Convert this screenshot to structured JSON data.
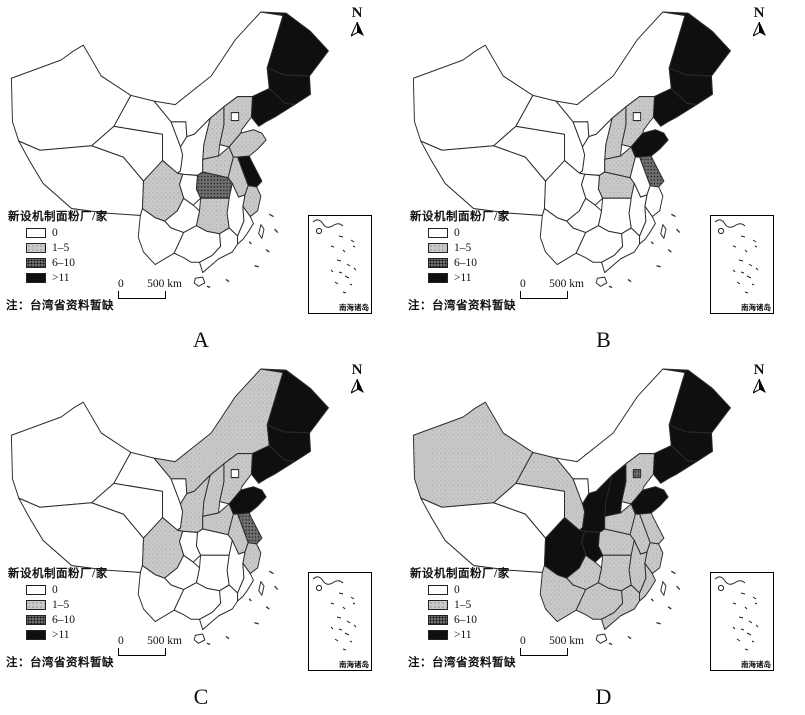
{
  "legend": {
    "title": "新设机制面粉厂/家",
    "classes": [
      {
        "label": "0"
      },
      {
        "label": "1–5"
      },
      {
        "label": "6–10"
      },
      {
        "label": ">11"
      }
    ],
    "note": "注：台湾省资料暂缺"
  },
  "scale_bar": {
    "start": "0",
    "end": "500 km"
  },
  "compass": {
    "label": "N"
  },
  "inset": {
    "label": "南海诸岛"
  },
  "colors": {
    "class0": "#ffffff",
    "class1": "#c9c9c9",
    "class2": "#6f6f6f",
    "class3": "#0f0f0f",
    "border": "#2b2b2b"
  },
  "maps": [
    {
      "label": "A",
      "categories": {
        "c1": [
          "hebei",
          "shanxi",
          "shandong",
          "henan",
          "anhui",
          "zhejiang",
          "hunan",
          "sichuan"
        ],
        "c2": [
          "hubei"
        ],
        "c3": [
          "heilongjiang",
          "jilin",
          "liaoning",
          "jiangsu"
        ]
      }
    },
    {
      "label": "B",
      "categories": {
        "c1": [
          "hebei",
          "shanxi",
          "henan",
          "hubei"
        ],
        "c2": [
          "jiangsu"
        ],
        "c3": [
          "heilongjiang",
          "jilin",
          "liaoning",
          "shandong"
        ]
      }
    },
    {
      "label": "C",
      "categories": {
        "c1": [
          "neimenggu",
          "hebei",
          "shanxi",
          "shaanxi",
          "henan",
          "anhui",
          "zhejiang",
          "sichuan"
        ],
        "c2": [
          "jiangsu"
        ],
        "c3": [
          "heilongjiang",
          "jilin",
          "liaoning",
          "shandong"
        ]
      }
    },
    {
      "label": "D",
      "categories": {
        "c1": [
          "xinjiang",
          "gansu",
          "hebei",
          "henan",
          "hubei",
          "anhui",
          "jiangsu",
          "zhejiang",
          "jiangxi",
          "hunan",
          "fujian",
          "guangdong",
          "guangxi",
          "guizhou",
          "yunnan"
        ],
        "c2": [
          "beijing"
        ],
        "c3": [
          "heilongjiang",
          "jilin",
          "liaoning",
          "shanxi",
          "shaanxi",
          "sichuan",
          "chongqing",
          "shandong"
        ]
      }
    }
  ]
}
